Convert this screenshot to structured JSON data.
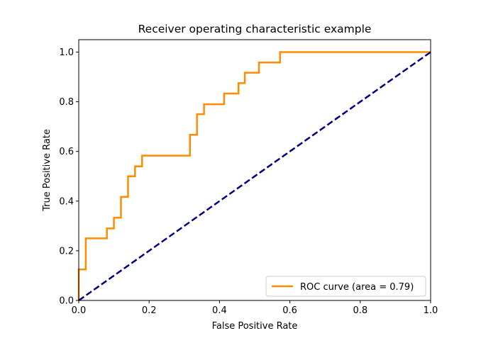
{
  "chart_data": {
    "type": "line",
    "title": "Receiver operating characteristic example",
    "xlabel": "False Positive Rate",
    "ylabel": "True Positive Rate",
    "xlim": [
      0.0,
      1.0
    ],
    "ylim": [
      0.0,
      1.05
    ],
    "xticks": [
      "0.0",
      "0.2",
      "0.4",
      "0.6",
      "0.8",
      "1.0"
    ],
    "yticks": [
      "0.0",
      "0.2",
      "0.4",
      "0.6",
      "0.8",
      "1.0"
    ],
    "grid": false,
    "legend_loc": "lower-right",
    "series": [
      {
        "name": "ROC curve (area = 0.79)",
        "color": "#ff8c00",
        "style": "solid",
        "x": [
          0.0,
          0.0,
          0.02,
          0.02,
          0.08,
          0.08,
          0.1,
          0.1,
          0.12,
          0.12,
          0.14,
          0.14,
          0.16,
          0.16,
          0.18,
          0.18,
          0.316,
          0.316,
          0.336,
          0.336,
          0.356,
          0.356,
          0.413,
          0.413,
          0.454,
          0.454,
          0.472,
          0.472,
          0.512,
          0.512,
          0.572,
          0.572,
          1.0
        ],
        "y": [
          0.0,
          0.125,
          0.125,
          0.25,
          0.25,
          0.29,
          0.29,
          0.333,
          0.333,
          0.417,
          0.417,
          0.5,
          0.5,
          0.54,
          0.54,
          0.583,
          0.583,
          0.667,
          0.667,
          0.75,
          0.75,
          0.79,
          0.79,
          0.833,
          0.833,
          0.875,
          0.875,
          0.917,
          0.917,
          0.958,
          0.958,
          1.0,
          1.0
        ]
      },
      {
        "color": "#000080",
        "style": "dashed",
        "x": [
          0.0,
          1.0
        ],
        "y": [
          0.0,
          1.0
        ]
      }
    ]
  }
}
